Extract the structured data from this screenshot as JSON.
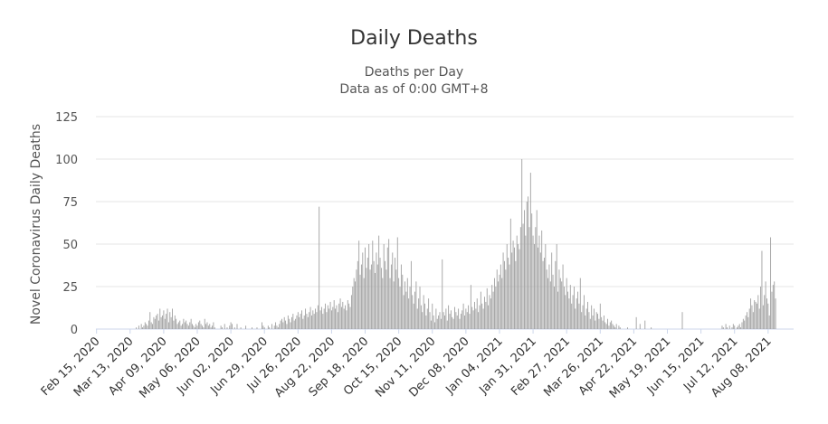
{
  "chart_data": {
    "type": "bar",
    "title": "Daily Deaths",
    "subtitle_lines": [
      "Deaths per Day",
      "Data as of 0:00 GMT+8"
    ],
    "ylabel": "Novel Coronavirus Daily Deaths",
    "xlabel": "",
    "ylim": [
      0,
      125
    ],
    "yticks": [
      0,
      25,
      50,
      75,
      100,
      125
    ],
    "grid": true,
    "bar_color": "#a0a0a0",
    "xtick_labels": [
      "Feb 15, 2020",
      "Mar 13, 2020",
      "Apr 09, 2020",
      "May 06, 2020",
      "Jun 02, 2020",
      "Jun 29, 2020",
      "Jul 26, 2020",
      "Aug 22, 2020",
      "Sep 18, 2020",
      "Oct 15, 2020",
      "Nov 11, 2020",
      "Dec 08, 2020",
      "Jan 04, 2021",
      "Jan 31, 2021",
      "Feb 27, 2021",
      "Mar 26, 2021",
      "Apr 22, 2021",
      "May 19, 2021",
      "Jun 15, 2021",
      "Jul 12, 2021",
      "Aug 08, 2021"
    ],
    "x_start_date": "2020-02-15",
    "x_end_date": "2021-08-29",
    "series": [
      {
        "values": [
          0,
          0,
          0,
          0,
          0,
          0,
          0,
          0,
          0,
          0,
          0,
          0,
          0,
          0,
          0,
          0,
          0,
          0,
          0,
          0,
          0,
          0,
          0,
          0,
          0,
          0,
          0,
          0,
          0,
          0,
          0,
          0,
          1,
          0,
          2,
          0,
          3,
          1,
          2,
          4,
          3,
          2,
          5,
          10,
          4,
          3,
          7,
          6,
          8,
          9,
          5,
          12,
          7,
          8,
          11,
          6,
          9,
          12,
          4,
          10,
          7,
          12,
          5,
          8,
          6,
          3,
          4,
          5,
          2,
          3,
          6,
          4,
          5,
          3,
          2,
          4,
          6,
          3,
          2,
          1,
          3,
          2,
          4,
          5,
          3,
          2,
          1,
          6,
          3,
          4,
          2,
          3,
          1,
          2,
          4,
          1,
          0,
          0,
          0,
          0,
          2,
          1,
          0,
          3,
          0,
          1,
          0,
          2,
          4,
          3,
          0,
          1,
          0,
          3,
          0,
          0,
          1,
          0,
          0,
          0,
          2,
          0,
          0,
          0,
          0,
          1,
          0,
          0,
          0,
          1,
          0,
          0,
          0,
          4,
          2,
          1,
          0,
          0,
          2,
          1,
          0,
          3,
          0,
          2,
          4,
          2,
          1,
          3,
          5,
          6,
          4,
          7,
          5,
          3,
          8,
          6,
          4,
          7,
          9,
          5,
          6,
          8,
          10,
          7,
          9,
          11,
          6,
          8,
          12,
          9,
          7,
          10,
          13,
          8,
          11,
          9,
          12,
          10,
          14,
          72,
          11,
          13,
          9,
          12,
          15,
          10,
          14,
          12,
          16,
          11,
          13,
          17,
          12,
          14,
          10,
          15,
          18,
          13,
          16,
          12,
          14,
          11,
          17,
          15,
          13,
          20,
          25,
          30,
          28,
          35,
          40,
          52,
          32,
          38,
          45,
          30,
          48,
          36,
          42,
          50,
          35,
          38,
          52,
          40,
          33,
          45,
          38,
          55,
          42,
          36,
          30,
          50,
          40,
          35,
          48,
          53,
          30,
          38,
          45,
          28,
          42,
          35,
          54,
          30,
          25,
          38,
          32,
          20,
          28,
          22,
          30,
          18,
          25,
          40,
          20,
          15,
          22,
          28,
          12,
          18,
          25,
          14,
          10,
          20,
          15,
          8,
          12,
          18,
          10,
          5,
          15,
          8,
          4,
          12,
          6,
          8,
          10,
          6,
          41,
          10,
          8,
          12,
          5,
          14,
          9,
          11,
          7,
          6,
          13,
          10,
          8,
          12,
          6,
          9,
          11,
          15,
          8,
          12,
          10,
          14,
          9,
          26,
          13,
          11,
          16,
          12,
          18,
          10,
          14,
          22,
          15,
          12,
          19,
          16,
          24,
          14,
          20,
          18,
          26,
          22,
          30,
          25,
          35,
          28,
          32,
          38,
          30,
          45,
          40,
          35,
          50,
          42,
          38,
          65,
          45,
          52,
          48,
          40,
          55,
          50,
          47,
          60,
          100,
          62,
          70,
          55,
          75,
          78,
          60,
          92,
          68,
          55,
          50,
          60,
          70,
          48,
          55,
          45,
          58,
          40,
          42,
          50,
          35,
          30,
          38,
          28,
          45,
          32,
          25,
          40,
          50,
          22,
          35,
          30,
          28,
          38,
          25,
          20,
          30,
          22,
          18,
          26,
          15,
          20,
          25,
          12,
          18,
          22,
          15,
          30,
          10,
          14,
          20,
          8,
          12,
          16,
          10,
          6,
          14,
          8,
          12,
          5,
          10,
          9,
          6,
          15,
          7,
          5,
          8,
          4,
          3,
          6,
          2,
          4,
          5,
          3,
          2,
          1,
          3,
          0,
          2,
          1,
          0,
          0,
          0,
          0,
          0,
          1,
          0,
          0,
          0,
          0,
          0,
          0,
          7,
          0,
          0,
          3,
          0,
          0,
          0,
          5,
          0,
          0,
          0,
          0,
          1,
          0,
          0,
          0,
          0,
          0,
          0,
          0,
          0,
          0,
          0,
          0,
          0,
          0,
          0,
          0,
          0,
          0,
          0,
          0,
          0,
          0,
          0,
          0,
          0,
          10,
          0,
          0,
          0,
          0,
          0,
          0,
          0,
          0,
          0,
          0,
          0,
          0,
          0,
          0,
          0,
          0,
          0,
          0,
          0,
          0,
          0,
          0,
          0,
          0,
          0,
          0,
          0,
          0,
          0,
          0,
          0,
          2,
          1,
          0,
          3,
          1,
          0,
          2,
          0,
          1,
          3,
          2,
          0,
          1,
          2,
          3,
          1,
          4,
          6,
          5,
          8,
          10,
          7,
          12,
          18,
          14,
          10,
          17,
          16,
          15,
          20,
          12,
          25,
          46,
          14,
          20,
          28,
          18,
          15,
          8,
          54,
          22,
          26,
          28,
          18
        ]
      }
    ]
  }
}
